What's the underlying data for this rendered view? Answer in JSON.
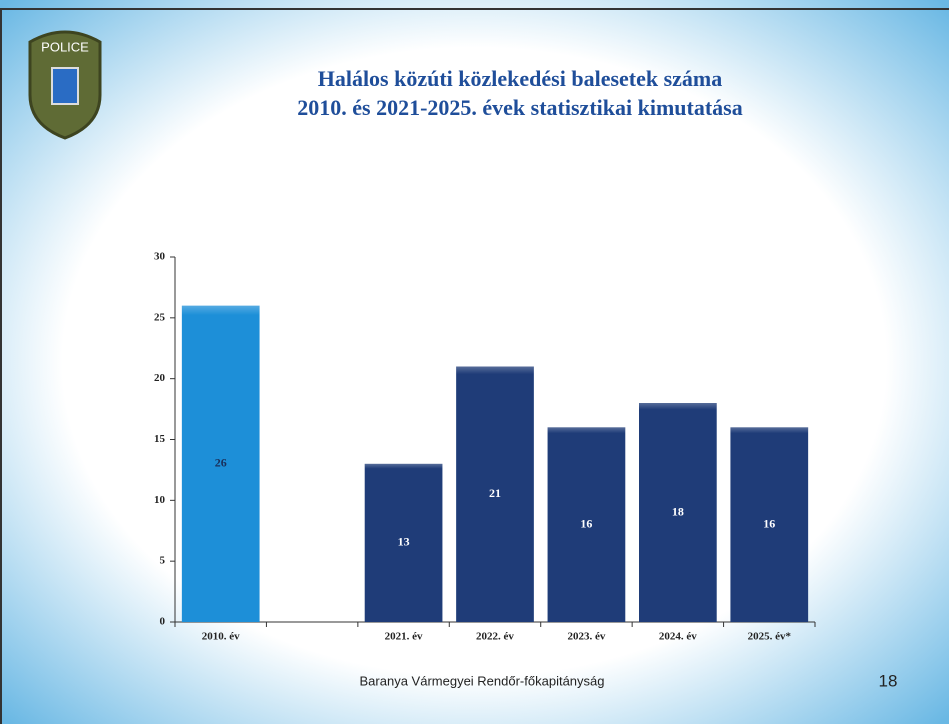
{
  "logo_text": "POLICE",
  "footer": "Baranya Vármegyei Rendőr-főkapitányság",
  "page_number": 18,
  "chart_data": {
    "type": "bar",
    "title": "Halálos közúti közlekedési balesetek száma",
    "subtitle": "2010. és 2021-2025. évek statisztikai kimutatása",
    "categories": [
      "2010. év",
      null,
      "2021. év",
      "2022. év",
      "2023. év",
      "2024. év",
      "2025. év*"
    ],
    "values": [
      26,
      null,
      13,
      21,
      16,
      18,
      16
    ],
    "colors": [
      "#1d8fd8",
      "#1f3c78",
      "#1f3c78",
      "#1f3c78",
      "#1f3c78",
      "#1f3c78",
      "#1f3c78"
    ],
    "label_colors": [
      "#1a2f5a",
      "#ffffff",
      "#ffffff",
      "#ffffff",
      "#ffffff",
      "#ffffff",
      "#ffffff"
    ],
    "ylim": [
      0,
      30
    ],
    "yticks": [
      0,
      5,
      10,
      15,
      20,
      25,
      30
    ]
  }
}
